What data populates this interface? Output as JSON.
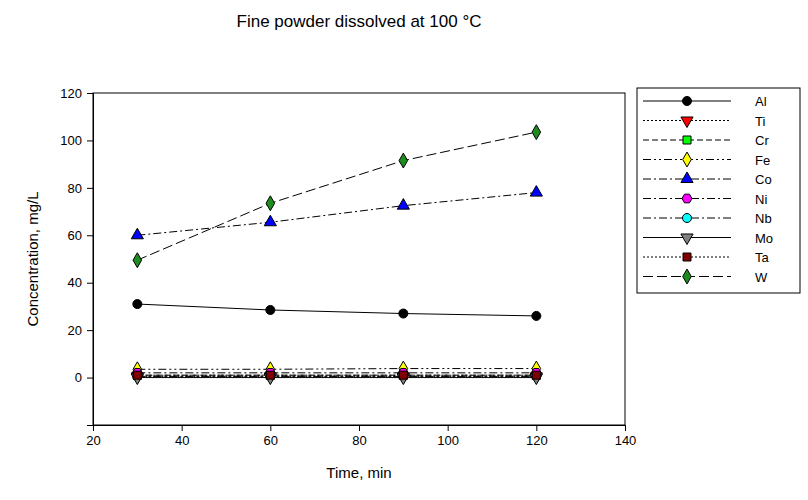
{
  "chart_data": {
    "type": "line",
    "title": "Fine powder dissolved at 100 °C",
    "x_label": "Time, min",
    "y_label": "Concentration, mg/L",
    "x": [
      30,
      60,
      90,
      120
    ],
    "xlim": [
      20,
      140
    ],
    "xticks": [
      20,
      40,
      60,
      80,
      100,
      120,
      140
    ],
    "ylim": [
      -20,
      120
    ],
    "yticks": [
      0,
      20,
      40,
      60,
      80,
      100,
      120
    ],
    "grid": false,
    "legend": "outside-right",
    "series": [
      {
        "name": "Al",
        "color": "#000000",
        "marker": "circle",
        "line_style": "solid",
        "values": [
          31,
          28.5,
          27,
          26
        ]
      },
      {
        "name": "Ti",
        "color": "#ff0000",
        "marker": "triangle-down",
        "line_style": "dotted",
        "values": [
          0.5,
          0.5,
          0.5,
          0.5
        ]
      },
      {
        "name": "Cr",
        "color": "#00ff00",
        "marker": "square",
        "line_style": "dashed",
        "values": [
          1,
          1,
          1,
          1
        ]
      },
      {
        "name": "Fe",
        "color": "#ffff00",
        "marker": "diamond",
        "line_style": "dash-dot-dot",
        "values": [
          3.5,
          3.5,
          3.8,
          3.8
        ]
      },
      {
        "name": "Co",
        "color": "#0000ff",
        "marker": "triangle",
        "line_style": "dash-dot",
        "values": [
          60,
          65.5,
          72.5,
          78
        ]
      },
      {
        "name": "Ni",
        "color": "#ff00ff",
        "marker": "hexagon",
        "line_style": "dash-dot",
        "values": [
          2,
          2,
          2,
          2
        ]
      },
      {
        "name": "Nb",
        "color": "#00ffff",
        "marker": "circle",
        "line_style": "dash-dot",
        "values": [
          0.5,
          0.5,
          0.5,
          0.5
        ]
      },
      {
        "name": "Mo",
        "color": "#808080",
        "marker": "triangle-down",
        "line_style": "solid",
        "values": [
          0,
          0,
          0,
          0
        ]
      },
      {
        "name": "Ta",
        "color": "#800000",
        "marker": "square",
        "line_style": "dotted",
        "values": [
          1,
          1,
          1,
          1
        ]
      },
      {
        "name": "W",
        "color": "#1e8c1e",
        "marker": "diamond",
        "line_style": "long-dash",
        "values": [
          49.5,
          73.5,
          91.5,
          103.5
        ]
      }
    ]
  }
}
